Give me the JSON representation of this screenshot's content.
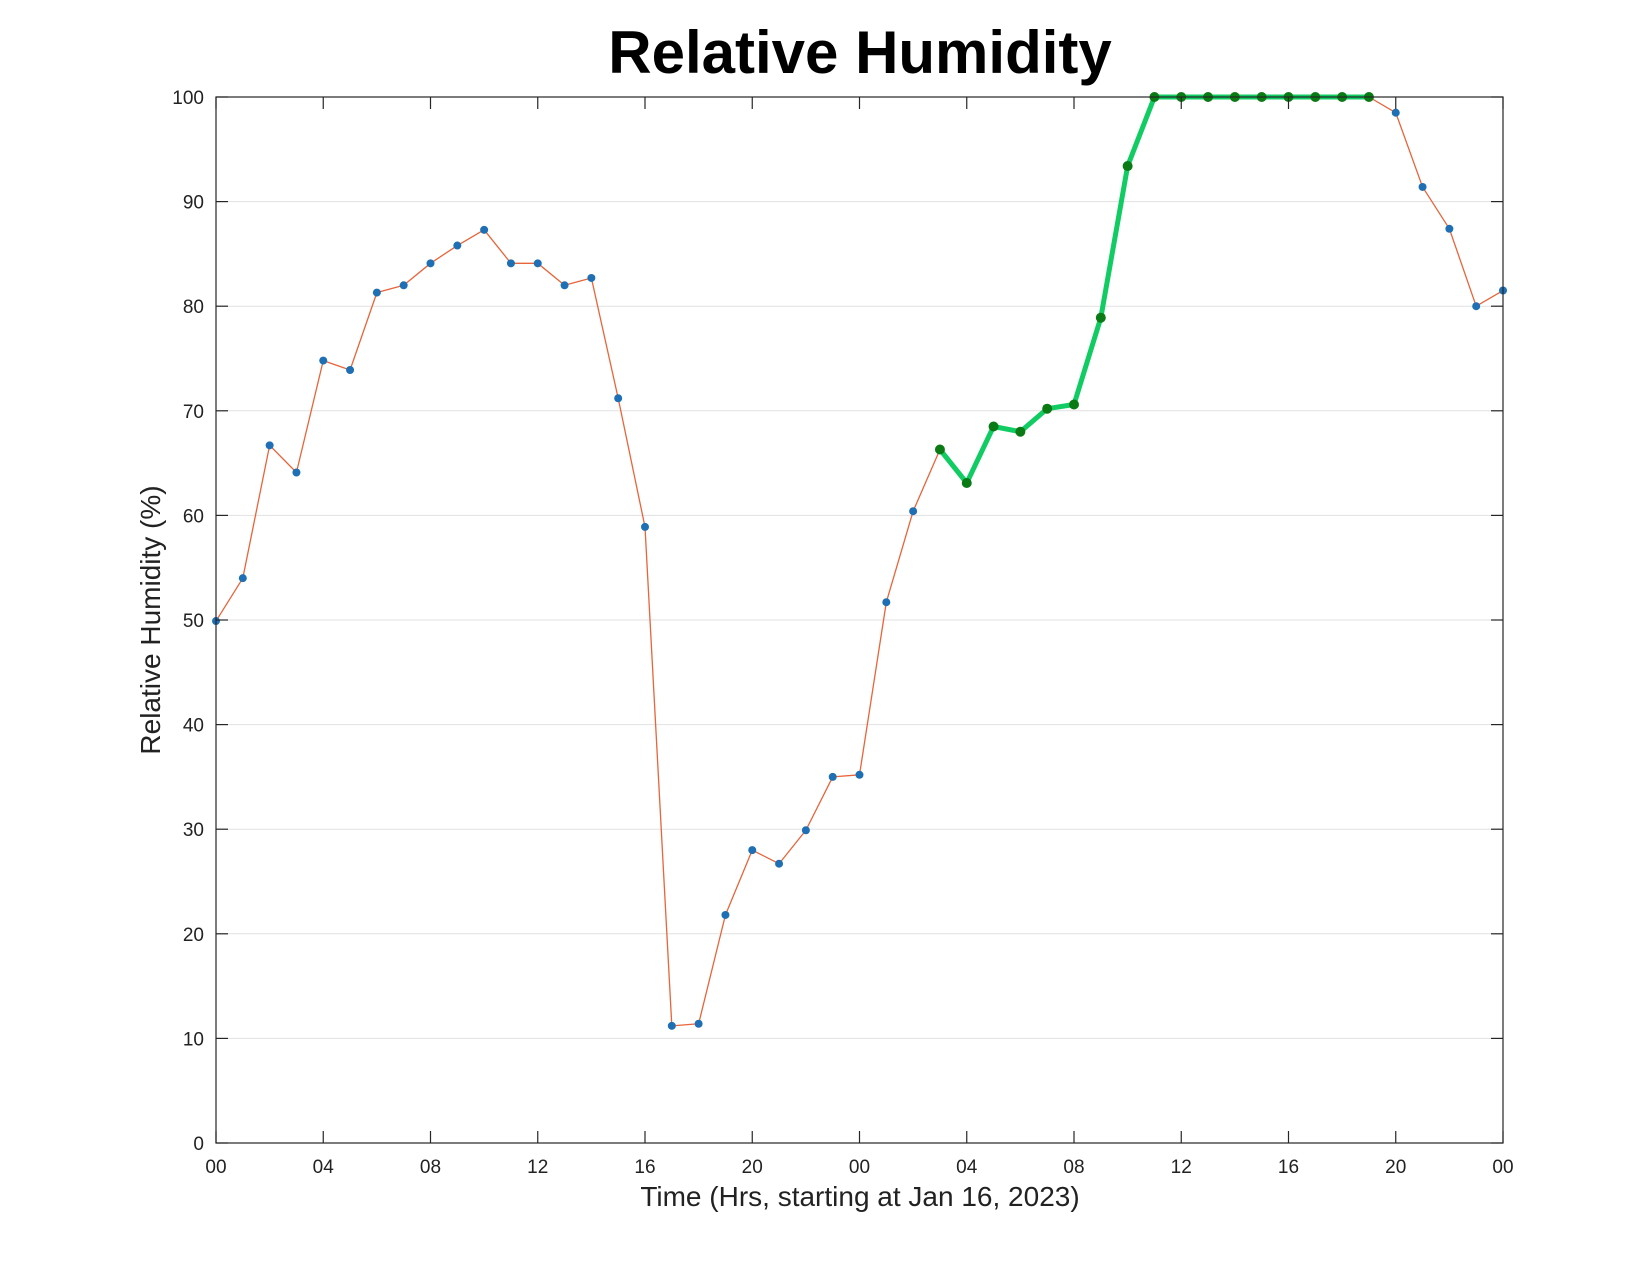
{
  "chart_data": {
    "type": "line",
    "title": "Relative Humidity",
    "xlabel": "Time (Hrs, starting at Jan 16, 2023)",
    "ylabel": "Relative Humidity (%)",
    "x_unit": "hours",
    "xlim": [
      0,
      48
    ],
    "ylim": [
      0,
      100
    ],
    "grid": "horizontal",
    "x_ticks": [
      {
        "value": 0,
        "label": "00"
      },
      {
        "value": 4,
        "label": "04"
      },
      {
        "value": 8,
        "label": "08"
      },
      {
        "value": 12,
        "label": "12"
      },
      {
        "value": 16,
        "label": "16"
      },
      {
        "value": 20,
        "label": "20"
      },
      {
        "value": 24,
        "label": "00"
      },
      {
        "value": 28,
        "label": "04"
      },
      {
        "value": 32,
        "label": "08"
      },
      {
        "value": 36,
        "label": "12"
      },
      {
        "value": 40,
        "label": "16"
      },
      {
        "value": 44,
        "label": "20"
      },
      {
        "value": 48,
        "label": "00"
      }
    ],
    "y_ticks": [
      0,
      10,
      20,
      30,
      40,
      50,
      60,
      70,
      80,
      90,
      100
    ],
    "series": [
      {
        "color": "#e8643a",
        "marker_color": "#1f6fb4",
        "x": [
          0,
          1,
          2,
          3,
          4,
          5,
          6,
          7,
          8,
          9,
          10,
          11,
          12,
          13,
          14,
          15,
          16,
          17,
          18,
          19,
          20,
          21,
          22,
          23,
          24,
          25,
          26,
          27,
          28,
          29,
          30,
          31,
          32,
          33,
          34,
          35,
          36,
          37,
          38,
          39,
          40,
          41,
          42,
          43,
          44,
          45,
          46,
          47,
          48
        ],
        "values": [
          49.9,
          54.0,
          66.7,
          64.1,
          74.8,
          73.9,
          81.3,
          82.0,
          84.1,
          85.8,
          87.3,
          84.1,
          84.1,
          82.0,
          82.7,
          71.2,
          58.9,
          11.2,
          11.4,
          21.8,
          28.0,
          26.7,
          29.9,
          35.0,
          35.2,
          51.7,
          60.4,
          66.3,
          63.1,
          68.5,
          68.0,
          70.2,
          70.6,
          78.9,
          93.4,
          100,
          100,
          100,
          100,
          100,
          100,
          100,
          100,
          100,
          98.5,
          91.4,
          87.4,
          80.0,
          81.5
        ]
      },
      {
        "color": "#10cc63",
        "marker_color": "#0a7a14",
        "x": [
          27,
          28,
          29,
          30,
          31,
          32,
          33,
          34,
          35,
          36,
          37,
          38,
          39,
          40,
          41,
          42,
          43
        ],
        "values": [
          66.3,
          63.1,
          68.5,
          68.0,
          70.2,
          70.6,
          78.9,
          93.4,
          100,
          100,
          100,
          100,
          100,
          100,
          100,
          100,
          100
        ]
      }
    ]
  }
}
